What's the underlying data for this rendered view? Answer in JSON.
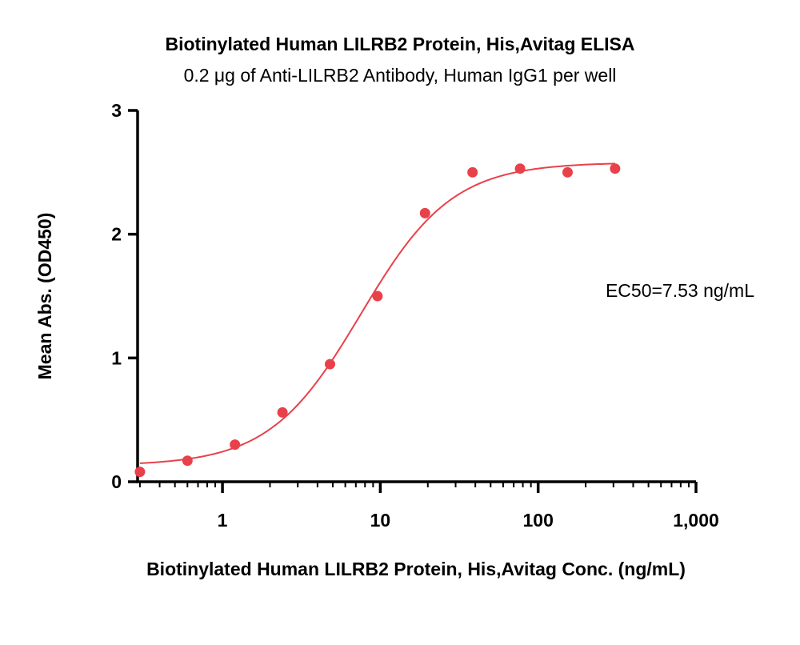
{
  "chart_data": {
    "type": "scatter",
    "title": "Biotinylated Human LILRB2 Protein, His,Avitag ELISA",
    "subtitle": "0.2 μg of Anti-LILRB2 Antibody, Human IgG1 per well",
    "xlabel": "Biotinylated Human LILRB2 Protein, His,Avitag Conc. (ng/mL)",
    "ylabel": "Mean Abs. (OD450)",
    "x_scale": "log",
    "xlim": [
      0.29,
      1000
    ],
    "ylim": [
      0,
      3
    ],
    "x_ticks": [
      1,
      10,
      100,
      1000
    ],
    "x_tick_labels": [
      "1",
      "10",
      "100",
      "1,000"
    ],
    "y_ticks": [
      0,
      1,
      2,
      3
    ],
    "y_tick_labels": [
      "0",
      "1",
      "2",
      "3"
    ],
    "grid": false,
    "color": "#e8414a",
    "series": [
      {
        "x": [
          0.3,
          0.6,
          1.2,
          2.4,
          4.8,
          9.6,
          19.2,
          38.4,
          76.8,
          153.6,
          307.2
        ],
        "y": [
          0.08,
          0.17,
          0.3,
          0.56,
          0.95,
          1.5,
          2.17,
          2.5,
          2.53,
          2.5,
          2.53
        ]
      }
    ],
    "fit_curve": {
      "model": "4PL",
      "bottom": 0.13,
      "top": 2.58,
      "ec50": 7.53,
      "hill": 1.5
    },
    "annotations": [
      {
        "text": "EC50=7.53 ng/mL"
      }
    ]
  }
}
